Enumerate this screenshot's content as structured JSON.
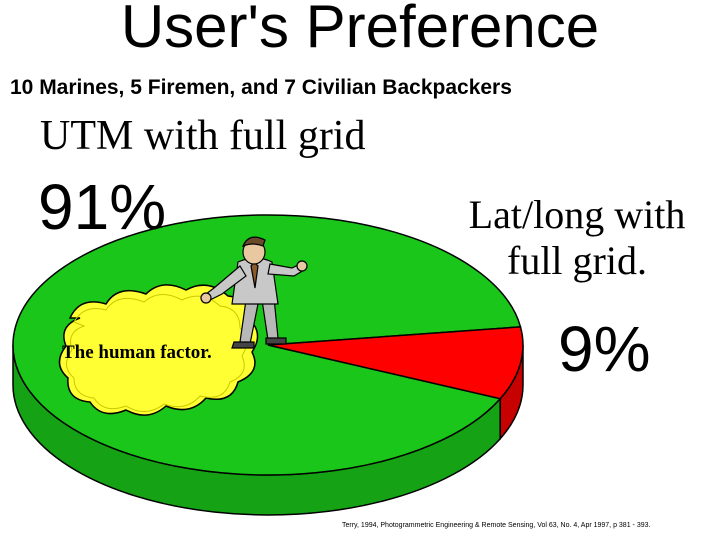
{
  "chart_data": {
    "type": "pie",
    "title": "User's Preference",
    "subtitle": "10 Marines, 5 Firemen, and 7 Civilian Backpackers",
    "slices": [
      {
        "label": "UTM with full grid",
        "value": 91,
        "value_label": "91%",
        "color": "#19c619"
      },
      {
        "label": "Lat/long with full grid.",
        "value": 9,
        "value_label": "9%",
        "color": "#ff0000"
      }
    ],
    "annotation": "The human factor.",
    "source": "Terry, 1994, Photogrammetric Engineering & Remote Sensing, Vol 63, No. 4, Apr 1997, p 381 - 393."
  }
}
